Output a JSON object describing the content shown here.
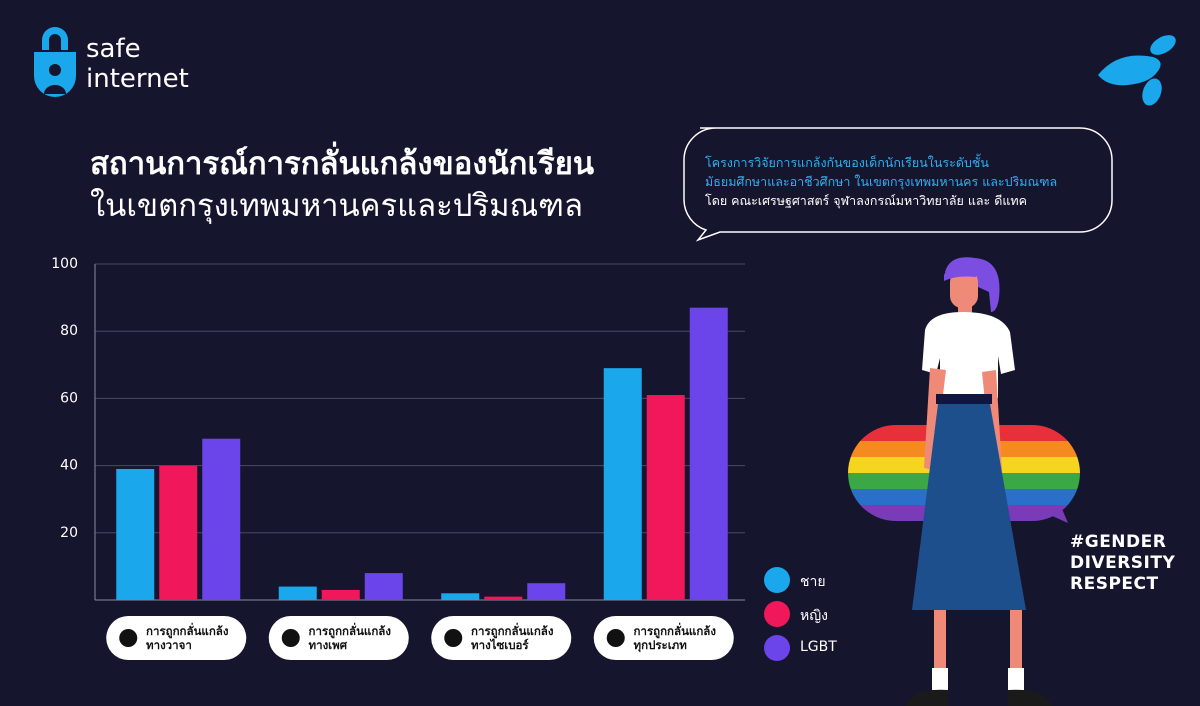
{
  "brand": "safe\ninternet",
  "title_lines": [
    "สถานการณ์การกลั่นแกล้งของนักเรียน",
    "ในเขตกรุงเทพมหานครและปริมณฑล"
  ],
  "source_lines": [
    "โครงการวิจัยการแกล้งกันของเด็กนักเรียนในระดับชั้น",
    "มัธยมศึกษาและอาชีวศึกษา ในเขตกรุงเทพมหานคร และปริมณฑล",
    "โดย คณะเศรษฐศาสตร์ จุฬาลงกรณ์มหาวิทยาลัย และ ดีแทค"
  ],
  "hashtag": "#GENDER\nDIVERSITY\nRESPECT",
  "chart_data": {
    "type": "bar",
    "categories": [
      "การถูกกลั่นแกล้ง\nทางวาจา",
      "การถูกกลั่นแกล้ง\nทางเพศ",
      "การถูกกลั่นแกล้ง\nทางไซเบอร์",
      "การถูกกลั่นแกล้ง\nทุกประเภท"
    ],
    "series": [
      {
        "name": "ชาย",
        "color": "#1aa7ec",
        "values": [
          39,
          4,
          2,
          69
        ]
      },
      {
        "name": "หญิง",
        "color": "#f0185a",
        "values": [
          40,
          3,
          1,
          61
        ]
      },
      {
        "name": "LGBT",
        "color": "#6b45ea",
        "values": [
          48,
          8,
          5,
          87
        ]
      }
    ],
    "ylim": [
      0,
      100
    ],
    "yticks": [
      20,
      40,
      60,
      80,
      100
    ],
    "grid": true
  }
}
